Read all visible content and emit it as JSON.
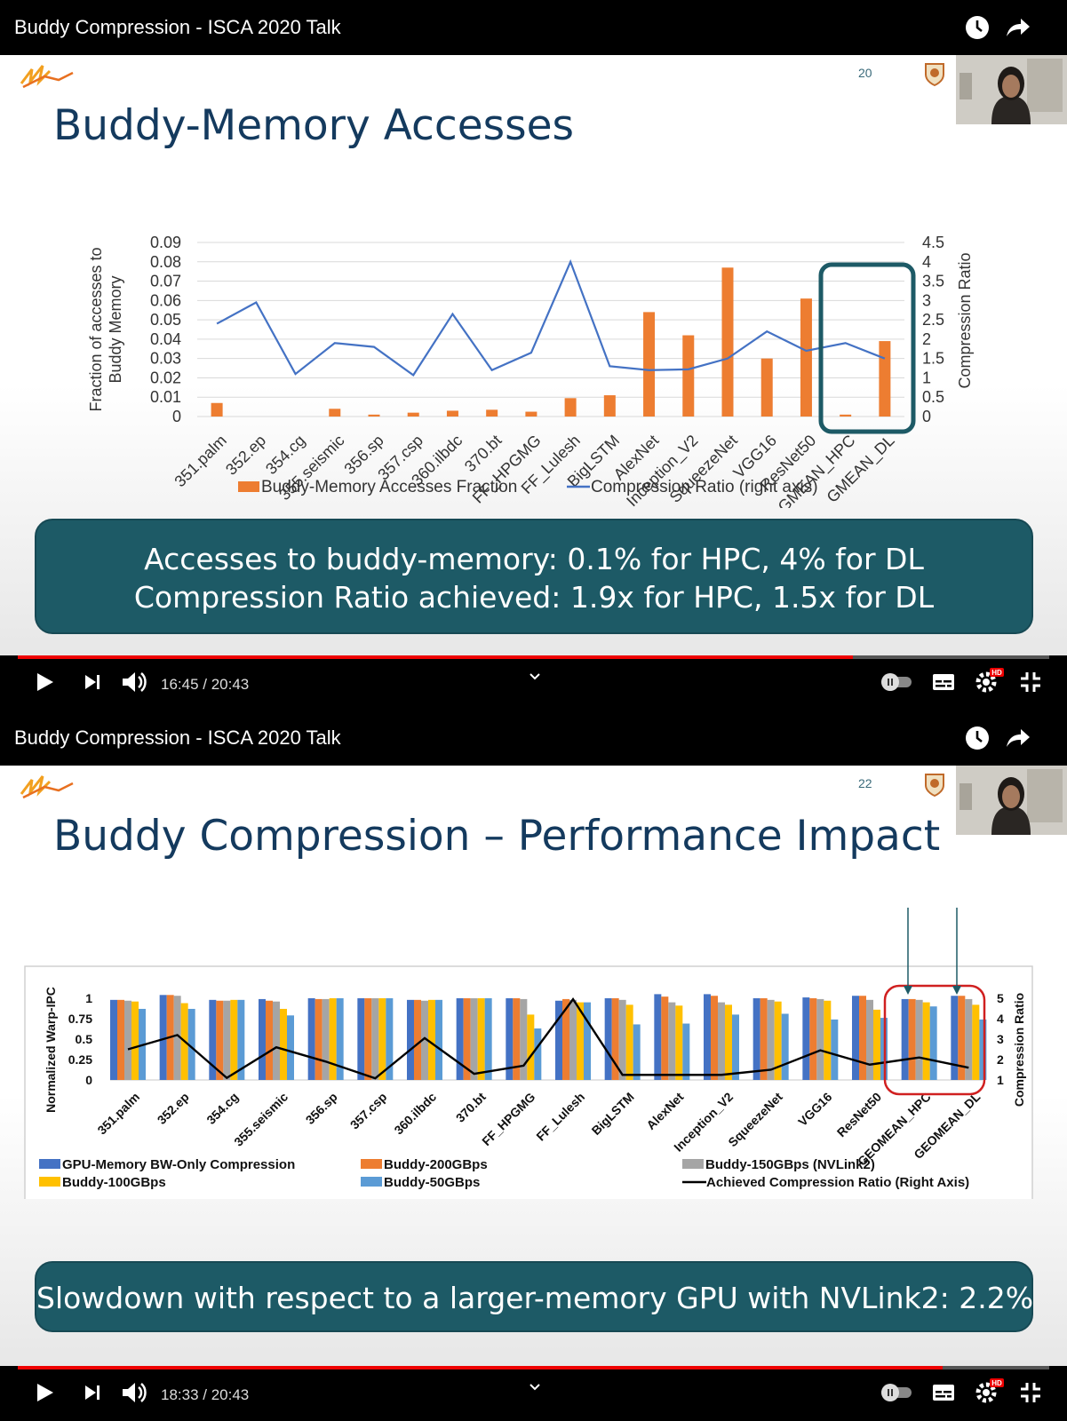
{
  "frame1": {
    "video_title": "Buddy Compression - ISCA 2020 Talk",
    "slide_number": "20",
    "slide_title": "Buddy-Memory Accesses",
    "callout_lines": [
      "Accesses to buddy-memory: 0.1% for HPC, 4% for DL",
      "Compression Ratio achieved: 1.9x for HPC, 1.5x for DL"
    ],
    "time_display": "16:45 / 20:43",
    "progress_fraction": 0.81
  },
  "frame2": {
    "video_title": "Buddy Compression - ISCA 2020 Talk",
    "slide_number": "22",
    "slide_title": "Buddy Compression – Performance Impact",
    "callout_lines": [
      "Slowdown with respect to a larger-memory GPU with NVLink2: 2.2%"
    ],
    "time_display": "18:33 / 20:43",
    "progress_fraction": 0.897
  },
  "colors": {
    "orange": "#ed7d31",
    "blue_line": "#4472c4",
    "teal": "#1d5a66",
    "title": "#143a5e",
    "bw_only": "#4472c4",
    "b200": "#ed7d31",
    "b150": "#a5a5a5",
    "b100": "#ffc000",
    "b50": "#5b9bd5",
    "ratio_line": "#000000",
    "highlight_red": "#d02020"
  },
  "chart_data": [
    {
      "type": "bar",
      "title": "Buddy-Memory Accesses",
      "categories": [
        "351.palm",
        "352.ep",
        "354.cg",
        "355.seismic",
        "356.sp",
        "357.csp",
        "360.ilbdc",
        "370.bt",
        "FF_HPGMG",
        "FF_Lulesh",
        "BigLSTM",
        "AlexNet",
        "Inception_V2",
        "SqueezeNet",
        "VGG16",
        "ResNet50",
        "GMEAN_HPC",
        "GMEAN_DL"
      ],
      "series": [
        {
          "name": "Buddy-Memory Accesses Fraction",
          "axis": "left",
          "kind": "bar",
          "values": [
            0.007,
            0,
            0,
            0.004,
            0.001,
            0.002,
            0.003,
            0.0035,
            0.0025,
            0.0095,
            0.011,
            0.054,
            0.042,
            0.077,
            0.03,
            0.061,
            0.001,
            0.039
          ]
        },
        {
          "name": "Compression Ratio (right axis)",
          "axis": "right",
          "kind": "line",
          "values": [
            2.4,
            2.95,
            1.1,
            1.9,
            1.8,
            1.07,
            2.65,
            1.2,
            1.65,
            4.0,
            1.3,
            1.2,
            1.22,
            1.5,
            2.2,
            1.7,
            1.9,
            1.5
          ]
        }
      ],
      "ylabel": "Fraction of accesses to Buddy Memory",
      "y2label": "Compression Ratio",
      "ylim": [
        0,
        0.09
      ],
      "y2lim": [
        0,
        4.5
      ],
      "yticks": [
        "0",
        "0.01",
        "0.02",
        "0.03",
        "0.04",
        "0.05",
        "0.06",
        "0.07",
        "0.08",
        "0.09"
      ],
      "y2ticks": [
        "0",
        "0.5",
        "1",
        "1.5",
        "2",
        "2.5",
        "3",
        "3.5",
        "4",
        "4.5"
      ],
      "legend": [
        "Buddy-Memory Accesses Fraction",
        "Compression Ratio (right axis)"
      ],
      "highlight": [
        "GMEAN_HPC",
        "GMEAN_DL"
      ]
    },
    {
      "type": "bar",
      "title": "Buddy Compression – Performance Impact",
      "categories": [
        "351.palm",
        "352.ep",
        "354.cg",
        "355.seismic",
        "356.sp",
        "357.csp",
        "360.ilbdc",
        "370.bt",
        "FF_HPGMG",
        "FF_Lulesh",
        "BigLSTM",
        "AlexNet",
        "Inception_V2",
        "SqueezeNet",
        "VGG16",
        "ResNet50",
        "GEOMEAN_HPC",
        "GEOMEAN_DL"
      ],
      "series": [
        {
          "name": "GPU-Memory BW-Only Compression",
          "axis": "left",
          "kind": "bar",
          "values": [
            0.98,
            1.04,
            0.98,
            0.99,
            1.0,
            1.0,
            0.98,
            1.0,
            1.0,
            0.97,
            1.0,
            1.05,
            1.05,
            1.0,
            1.01,
            1.03,
            0.99,
            1.03
          ]
        },
        {
          "name": "Buddy-200GBps",
          "axis": "left",
          "kind": "bar",
          "values": [
            0.98,
            1.04,
            0.97,
            0.97,
            0.99,
            1.0,
            0.98,
            1.0,
            1.0,
            0.99,
            1.0,
            1.02,
            1.03,
            1.0,
            1.0,
            1.03,
            0.99,
            1.03
          ]
        },
        {
          "name": "Buddy-150GBps (NVLink2)",
          "axis": "left",
          "kind": "bar",
          "values": [
            0.97,
            1.03,
            0.97,
            0.96,
            0.99,
            1.0,
            0.97,
            1.0,
            0.99,
            0.98,
            0.98,
            0.95,
            0.95,
            0.98,
            0.99,
            0.98,
            0.98,
            0.99
          ]
        },
        {
          "name": "Buddy-100GBps",
          "axis": "left",
          "kind": "bar",
          "values": [
            0.96,
            0.94,
            0.98,
            0.87,
            1.0,
            1.0,
            0.98,
            1.0,
            0.8,
            0.95,
            0.92,
            0.91,
            0.92,
            0.96,
            0.97,
            0.86,
            0.95,
            0.92
          ]
        },
        {
          "name": "Buddy-50GBps",
          "axis": "left",
          "kind": "bar",
          "values": [
            0.87,
            0.87,
            0.98,
            0.79,
            1.0,
            1.0,
            0.98,
            1.0,
            0.63,
            0.95,
            0.68,
            0.69,
            0.8,
            0.81,
            0.74,
            0.76,
            0.9,
            0.74
          ]
        },
        {
          "name": "Achieved Compression Ratio (Right Axis)",
          "axis": "right",
          "kind": "line",
          "values": [
            2.5,
            3.2,
            1.1,
            2.6,
            1.9,
            1.08,
            3.05,
            1.3,
            1.7,
            4.95,
            1.25,
            1.25,
            1.25,
            1.5,
            2.45,
            1.75,
            2.1,
            1.6
          ]
        }
      ],
      "ylabel": "Normalized Warp-IPC",
      "y2label": "Compression Ratio",
      "ylim": [
        0,
        1
      ],
      "y2lim": [
        1,
        5
      ],
      "yticks": [
        "0",
        "0.25",
        "0.5",
        "0.75",
        "1"
      ],
      "y2ticks": [
        "1",
        "2",
        "3",
        "4",
        "5"
      ],
      "legend": [
        "GPU-Memory BW-Only Compression",
        "Buddy-200GBps",
        "Buddy-150GBps (NVLink2)",
        "Buddy-100GBps",
        "Buddy-50GBps",
        "Achieved Compression Ratio (Right Axis)"
      ],
      "highlight": [
        "GEOMEAN_HPC",
        "GEOMEAN_DL"
      ]
    }
  ]
}
